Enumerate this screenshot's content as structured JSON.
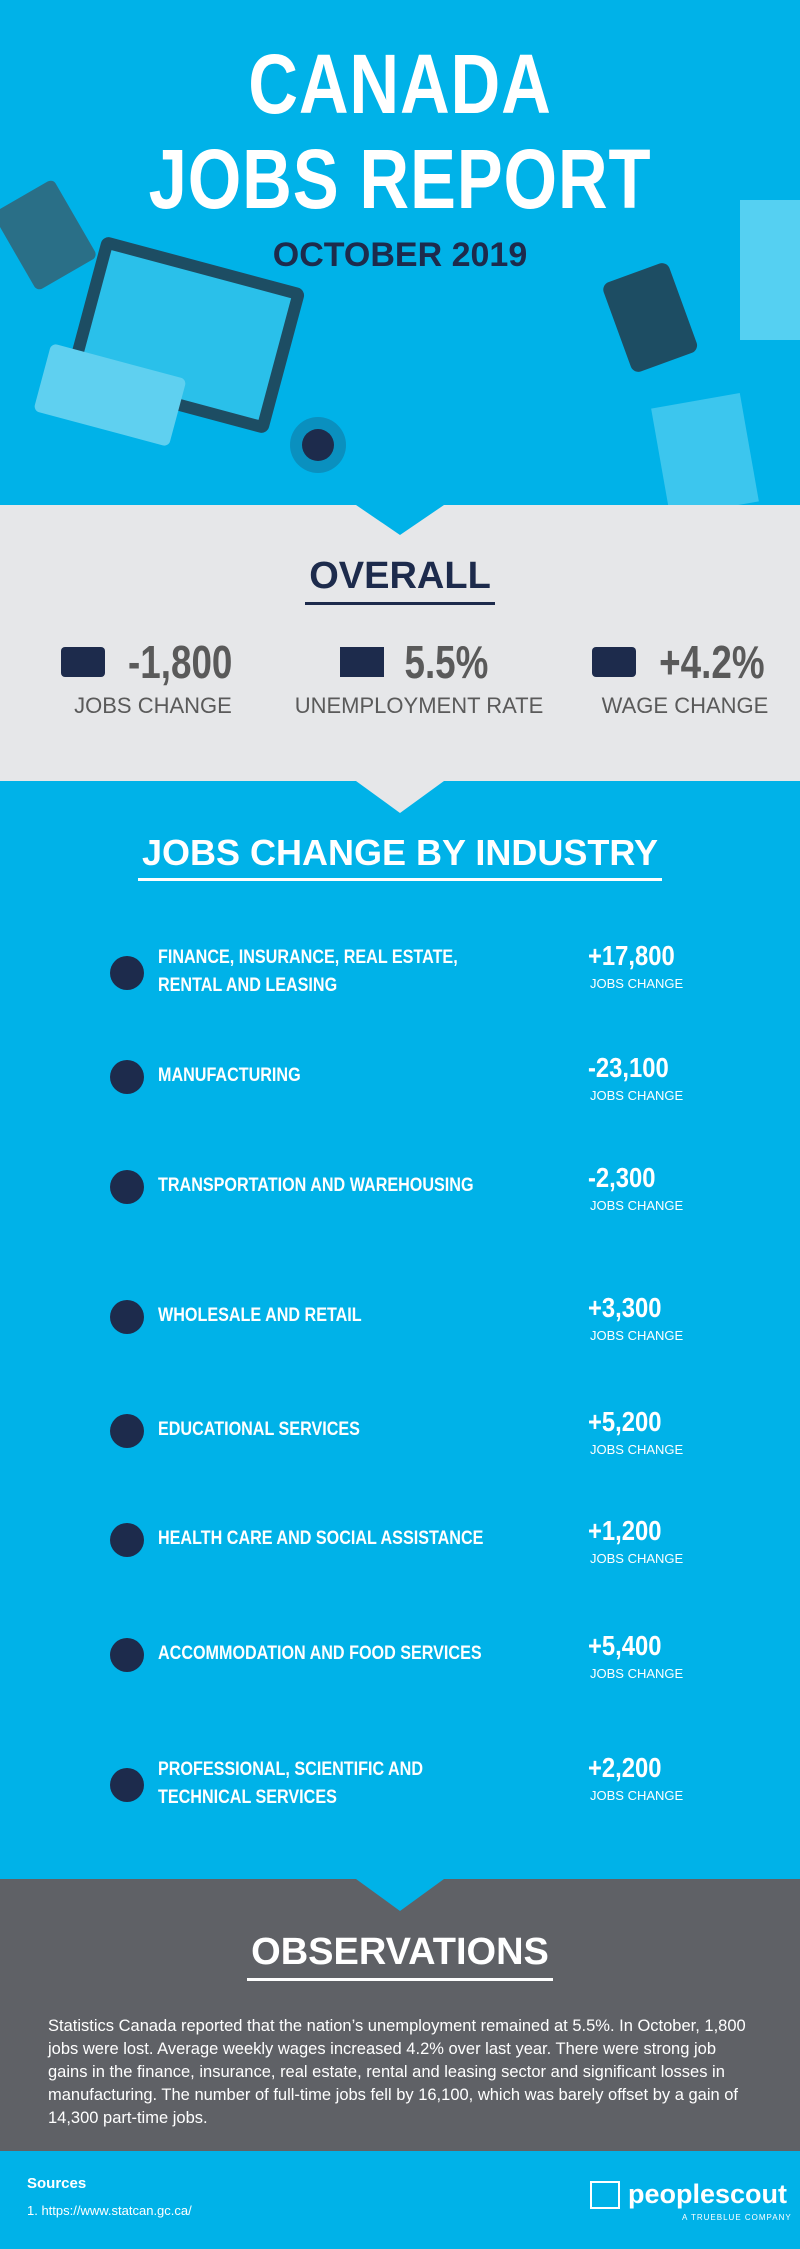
{
  "header": {
    "title_lines": [
      "CANADA",
      "JOBS REPORT"
    ],
    "subtitle": "OCTOBER 2019"
  },
  "overall": {
    "heading": "OVERALL",
    "stats": [
      {
        "value": "-1,800",
        "label": "JOBS CHANGE"
      },
      {
        "value": "5.5%",
        "label": "UNEMPLOYMENT RATE"
      },
      {
        "value": "+4.2%",
        "label": "WAGE CHANGE"
      }
    ]
  },
  "industry": {
    "heading": "JOBS CHANGE BY INDUSTRY",
    "items": [
      {
        "lines": [
          "FINANCE, INSURANCE, REAL ESTATE,",
          "RENTAL AND LEASING"
        ],
        "value": "+17,800",
        "label": "JOBS CHANGE"
      },
      {
        "lines": [
          "MANUFACTURING"
        ],
        "value": "-23,100",
        "label": "JOBS CHANGE"
      },
      {
        "lines": [
          "TRANSPORTATION AND WAREHOUSING"
        ],
        "value": "-2,300",
        "label": "JOBS CHANGE"
      },
      {
        "lines": [
          "WHOLESALE AND RETAIL"
        ],
        "value": "+3,300",
        "label": "JOBS CHANGE"
      },
      {
        "lines": [
          "EDUCATIONAL SERVICES"
        ],
        "value": "+5,200",
        "label": "JOBS CHANGE"
      },
      {
        "lines": [
          "HEALTH CARE AND SOCIAL ASSISTANCE"
        ],
        "value": "+1,200",
        "label": "JOBS CHANGE"
      },
      {
        "lines": [
          "ACCOMMODATION AND FOOD SERVICES"
        ],
        "value": "+5,400",
        "label": "JOBS CHANGE"
      },
      {
        "lines": [
          "PROFESSIONAL, SCIENTIFIC AND",
          "TECHNICAL SERVICES"
        ],
        "value": "+2,200",
        "label": "JOBS CHANGE"
      }
    ]
  },
  "observations": {
    "heading": "OBSERVATIONS",
    "text": "Statistics Canada reported that the nation’s unemployment remained at 5.5%. In October, 1,800 jobs were lost. Average weekly wages increased 4.2% over last year. There were strong job gains in the finance, insurance, real estate, rental and leasing sector and significant losses in manufacturing. The number of full-time jobs fell by 16,100, which was barely offset by a gain of 14,300 part-time jobs."
  },
  "footer": {
    "sources_heading": "Sources",
    "sources": [
      "1. https://www.statcan.gc.ca/"
    ],
    "logo": "peoplescout",
    "logo_tagline": "A TRUEBLUE COMPANY"
  }
}
